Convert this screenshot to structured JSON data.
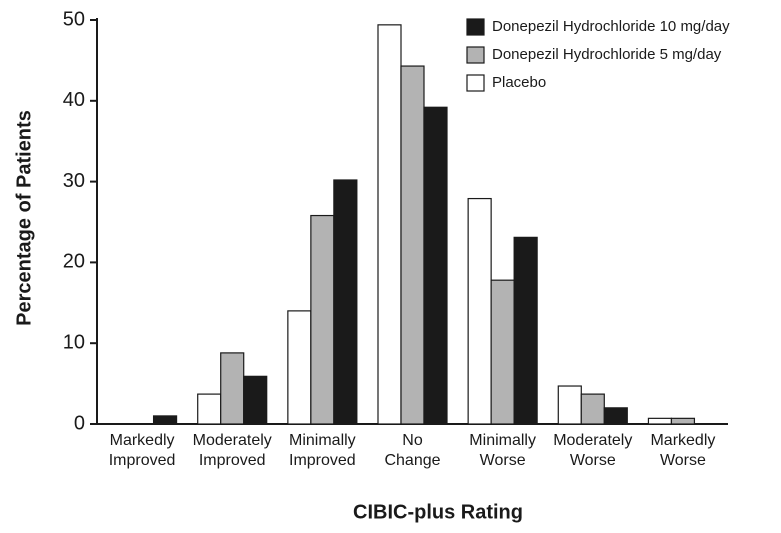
{
  "chart_data": {
    "type": "bar",
    "categories": [
      "Markedly Improved",
      "Moderately Improved",
      "Minimally Improved",
      "No Change",
      "Minimally Worse",
      "Moderately Worse",
      "Markedly Worse"
    ],
    "series": [
      {
        "name": "Placebo",
        "color": "#ffffff",
        "values": [
          0,
          3.7,
          14,
          49.4,
          27.9,
          4.7,
          0.7
        ]
      },
      {
        "name": "Donepezil Hydrochloride 5 mg/day",
        "color": "#b3b3b3",
        "values": [
          0,
          8.8,
          25.8,
          44.3,
          17.8,
          3.7,
          0.7
        ]
      },
      {
        "name": "Donepezil Hydrochloride 10 mg/day",
        "color": "#1a1a1a",
        "values": [
          1,
          5.9,
          30.2,
          39.2,
          23.1,
          2,
          0
        ]
      }
    ],
    "ylabel": "Percentage of Patients",
    "xlabel": "CIBIC-plus Rating",
    "ylim": [
      0,
      50
    ],
    "yticks": [
      0,
      10,
      20,
      30,
      40,
      50
    ],
    "legend": "upper right"
  }
}
